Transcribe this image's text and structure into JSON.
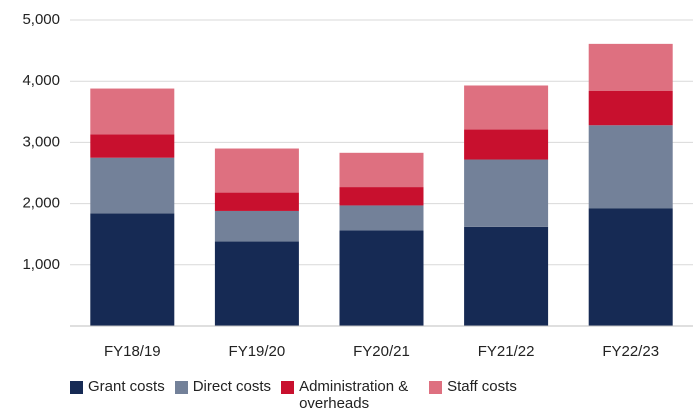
{
  "chart_data": {
    "type": "bar",
    "stacked": true,
    "categories": [
      "FY18/19",
      "FY19/20",
      "FY20/21",
      "FY21/22",
      "FY22/23"
    ],
    "series": [
      {
        "name": "Grant costs",
        "color": "#162a54",
        "values": [
          1840,
          1380,
          1560,
          1620,
          1920
        ]
      },
      {
        "name": "Direct costs",
        "color": "#738199",
        "values": [
          910,
          500,
          410,
          1100,
          1360
        ]
      },
      {
        "name": "Administration & overheads",
        "color": "#c8102e",
        "values": [
          380,
          300,
          300,
          490,
          560
        ]
      },
      {
        "name": "Staff costs",
        "color": "#de7080",
        "values": [
          750,
          720,
          560,
          720,
          770
        ]
      }
    ],
    "ylim": [
      0,
      5000
    ],
    "yticks": [
      {
        "value": 1000,
        "label": "1,000"
      },
      {
        "value": 2000,
        "label": "2,000"
      },
      {
        "value": 3000,
        "label": "3,000"
      },
      {
        "value": 4000,
        "label": "4,000"
      },
      {
        "value": 5000,
        "label": "5,000"
      }
    ],
    "grid": true
  }
}
